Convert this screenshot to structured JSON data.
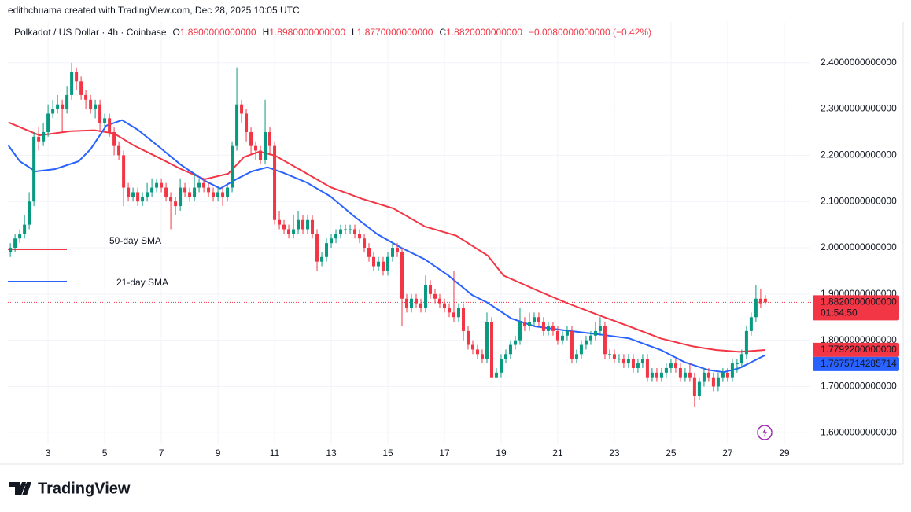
{
  "header": {
    "attribution": "edithchuama created with TradingView.com, Dec 28, 2025 10:05 UTC",
    "symbol": "Polkadot / US Dollar · 4h · Coinbase",
    "ohlc": [
      {
        "key": "O",
        "value": "1.8900000000000"
      },
      {
        "key": "H",
        "value": "1.8980000000000"
      },
      {
        "key": "L",
        "value": "1.8770000000000"
      },
      {
        "key": "C",
        "value": "1.8820000000000"
      }
    ],
    "change": "−0.0080000000000 (−0.42%)"
  },
  "footer": {
    "brand": "TradingView"
  },
  "chart_data": {
    "type": "candlestick",
    "up_color": "#089981",
    "down_color": "#f23645",
    "grid": true,
    "xlim": [
      1.58,
      29.92
    ],
    "xticks": [
      3,
      5,
      7,
      9,
      11,
      13,
      15,
      17,
      19,
      21,
      23,
      25,
      27,
      29
    ],
    "ylim": [
      1.575,
      2.488
    ],
    "yticks": [
      {
        "value": 1.6,
        "label": "1.6000000000000"
      },
      {
        "value": 1.7,
        "label": "1.7000000000000"
      },
      {
        "value": 1.8,
        "label": "1.8000000000000"
      },
      {
        "value": 1.9,
        "label": "1.9000000000000"
      },
      {
        "value": 2.0,
        "label": "2.0000000000000"
      },
      {
        "value": 2.1,
        "label": "2.1000000000000"
      },
      {
        "value": 2.2,
        "label": "2.2000000000000"
      },
      {
        "value": 2.3,
        "label": "2.3000000000000"
      },
      {
        "value": 2.4,
        "label": "2.4000000000000"
      }
    ],
    "x": [
      1.667,
      1.833,
      2,
      2.167,
      2.333,
      2.5,
      2.667,
      2.833,
      3,
      3.167,
      3.333,
      3.5,
      3.667,
      3.833,
      4,
      4.167,
      4.333,
      4.5,
      4.667,
      4.833,
      5,
      5.167,
      5.333,
      5.5,
      5.667,
      5.833,
      6,
      6.167,
      6.333,
      6.5,
      6.667,
      6.833,
      7,
      7.167,
      7.333,
      7.5,
      7.667,
      7.833,
      8,
      8.167,
      8.333,
      8.5,
      8.667,
      8.833,
      9,
      9.167,
      9.333,
      9.5,
      9.667,
      9.833,
      10,
      10.167,
      10.333,
      10.5,
      10.667,
      10.833,
      11,
      11.167,
      11.333,
      11.5,
      11.667,
      11.833,
      12,
      12.167,
      12.333,
      12.5,
      12.667,
      12.833,
      13,
      13.167,
      13.333,
      13.5,
      13.667,
      13.833,
      14,
      14.167,
      14.333,
      14.5,
      14.667,
      14.833,
      15,
      15.167,
      15.333,
      15.5,
      15.667,
      15.833,
      16,
      16.167,
      16.333,
      16.5,
      16.667,
      16.833,
      17,
      17.167,
      17.333,
      17.5,
      17.667,
      17.833,
      18,
      18.167,
      18.333,
      18.5,
      18.667,
      18.833,
      19,
      19.167,
      19.333,
      19.5,
      19.667,
      19.833,
      20,
      20.167,
      20.333,
      20.5,
      20.667,
      20.833,
      21,
      21.167,
      21.333,
      21.5,
      21.667,
      21.833,
      22,
      22.167,
      22.333,
      22.5,
      22.667,
      22.833,
      23,
      23.167,
      23.333,
      23.5,
      23.667,
      23.833,
      24,
      24.167,
      24.333,
      24.5,
      24.667,
      24.833,
      25,
      25.167,
      25.333,
      25.5,
      25.667,
      25.833,
      26,
      26.167,
      26.333,
      26.5,
      26.667,
      26.833,
      27,
      27.167,
      27.333,
      27.5,
      27.667,
      27.833,
      28,
      28.167,
      28.333
    ],
    "open": [
      1.99,
      2.0,
      2.02,
      2.03,
      2.05,
      2.1,
      2.24,
      2.23,
      2.25,
      2.29,
      2.3,
      2.31,
      2.3,
      2.33,
      2.38,
      2.36,
      2.33,
      2.32,
      2.3,
      2.31,
      2.27,
      2.28,
      2.25,
      2.22,
      2.2,
      2.13,
      2.11,
      2.12,
      2.1,
      2.11,
      2.12,
      2.13,
      2.14,
      2.13,
      2.11,
      2.1,
      2.09,
      2.13,
      2.12,
      2.11,
      2.13,
      2.14,
      2.13,
      2.12,
      2.11,
      2.12,
      2.11,
      2.13,
      2.22,
      2.31,
      2.29,
      2.25,
      2.22,
      2.21,
      2.19,
      2.25,
      2.22,
      2.06,
      2.05,
      2.04,
      2.03,
      2.04,
      2.06,
      2.04,
      2.06,
      2.03,
      1.97,
      1.98,
      2.01,
      2.02,
      2.03,
      2.04,
      2.04,
      2.04,
      2.03,
      2.02,
      2.0,
      1.98,
      1.96,
      1.97,
      1.95,
      1.98,
      2.0,
      1.99,
      1.89,
      1.87,
      1.89,
      1.88,
      1.87,
      1.92,
      1.9,
      1.89,
      1.88,
      1.87,
      1.86,
      1.85,
      1.87,
      1.82,
      1.79,
      1.78,
      1.77,
      1.76,
      1.84,
      1.72,
      1.73,
      1.76,
      1.77,
      1.79,
      1.8,
      1.84,
      1.83,
      1.84,
      1.85,
      1.84,
      1.82,
      1.83,
      1.82,
      1.8,
      1.81,
      1.82,
      1.76,
      1.77,
      1.79,
      1.8,
      1.81,
      1.82,
      1.83,
      1.77,
      1.77,
      1.76,
      1.76,
      1.75,
      1.76,
      1.74,
      1.75,
      1.76,
      1.72,
      1.73,
      1.72,
      1.73,
      1.74,
      1.75,
      1.74,
      1.72,
      1.73,
      1.72,
      1.68,
      1.71,
      1.73,
      1.72,
      1.7,
      1.72,
      1.73,
      1.72,
      1.75,
      1.75,
      1.77,
      1.82,
      1.85,
      1.89,
      1.89
    ],
    "high": [
      2.01,
      2.03,
      2.04,
      2.07,
      2.12,
      2.25,
      2.26,
      2.27,
      2.31,
      2.32,
      2.33,
      2.32,
      2.35,
      2.4,
      2.39,
      2.37,
      2.34,
      2.33,
      2.32,
      2.32,
      2.29,
      2.29,
      2.26,
      2.23,
      2.21,
      2.14,
      2.13,
      2.13,
      2.12,
      2.14,
      2.15,
      2.15,
      2.15,
      2.14,
      2.12,
      2.11,
      2.15,
      2.14,
      2.13,
      2.16,
      2.15,
      2.15,
      2.14,
      2.13,
      2.13,
      2.13,
      2.14,
      2.23,
      2.39,
      2.32,
      2.3,
      2.26,
      2.23,
      2.22,
      2.32,
      2.26,
      2.23,
      2.08,
      2.06,
      2.05,
      2.07,
      2.08,
      2.07,
      2.07,
      2.07,
      2.04,
      1.99,
      2.02,
      2.03,
      2.04,
      2.05,
      2.05,
      2.05,
      2.05,
      2.04,
      2.03,
      2.01,
      1.99,
      1.98,
      1.98,
      1.99,
      2.01,
      2.01,
      2.0,
      1.9,
      1.9,
      1.9,
      1.89,
      1.94,
      1.93,
      1.91,
      1.9,
      1.89,
      1.88,
      1.95,
      1.88,
      1.88,
      1.83,
      1.8,
      1.79,
      1.78,
      1.86,
      1.85,
      1.74,
      1.77,
      1.78,
      1.8,
      1.81,
      1.87,
      1.85,
      1.86,
      1.86,
      1.86,
      1.85,
      1.84,
      1.84,
      1.83,
      1.82,
      1.83,
      1.83,
      1.78,
      1.8,
      1.81,
      1.82,
      1.84,
      1.85,
      1.84,
      1.78,
      1.78,
      1.77,
      1.77,
      1.77,
      1.77,
      1.76,
      1.77,
      1.77,
      1.74,
      1.74,
      1.74,
      1.75,
      1.76,
      1.76,
      1.75,
      1.74,
      1.75,
      1.73,
      1.72,
      1.74,
      1.74,
      1.73,
      1.73,
      1.74,
      1.74,
      1.76,
      1.76,
      1.78,
      1.83,
      1.86,
      1.92,
      1.91,
      1.898
    ],
    "low": [
      1.98,
      1.99,
      2.01,
      2.02,
      2.04,
      2.09,
      2.21,
      2.22,
      2.24,
      2.28,
      2.29,
      2.25,
      2.29,
      2.32,
      2.34,
      2.32,
      2.3,
      2.29,
      2.28,
      2.25,
      2.26,
      2.24,
      2.2,
      2.19,
      2.09,
      2.1,
      2.1,
      2.09,
      2.09,
      2.1,
      2.11,
      2.12,
      2.12,
      2.1,
      2.04,
      2.07,
      2.08,
      2.11,
      2.1,
      2.1,
      2.12,
      2.12,
      2.11,
      2.1,
      2.1,
      2.09,
      2.1,
      2.12,
      2.21,
      2.27,
      2.23,
      2.2,
      2.19,
      2.18,
      2.18,
      2.2,
      2.05,
      2.04,
      2.03,
      2.02,
      2.02,
      2.03,
      2.03,
      2.03,
      2.02,
      1.95,
      1.96,
      1.97,
      2.0,
      2.01,
      2.02,
      2.03,
      2.03,
      2.02,
      2.01,
      1.99,
      1.97,
      1.95,
      1.95,
      1.94,
      1.94,
      1.97,
      1.98,
      1.83,
      1.86,
      1.86,
      1.87,
      1.86,
      1.86,
      1.89,
      1.88,
      1.87,
      1.86,
      1.85,
      1.84,
      1.84,
      1.8,
      1.78,
      1.77,
      1.76,
      1.75,
      1.75,
      1.72,
      1.72,
      1.72,
      1.75,
      1.76,
      1.78,
      1.79,
      1.82,
      1.82,
      1.83,
      1.83,
      1.81,
      1.81,
      1.81,
      1.79,
      1.79,
      1.8,
      1.75,
      1.75,
      1.76,
      1.78,
      1.79,
      1.8,
      1.81,
      1.76,
      1.76,
      1.75,
      1.75,
      1.74,
      1.74,
      1.73,
      1.73,
      1.74,
      1.71,
      1.71,
      1.71,
      1.71,
      1.72,
      1.73,
      1.73,
      1.71,
      1.71,
      1.71,
      1.655,
      1.67,
      1.7,
      1.71,
      1.69,
      1.69,
      1.71,
      1.71,
      1.71,
      1.73,
      1.74,
      1.76,
      1.81,
      1.84,
      1.87,
      1.877
    ],
    "close": [
      2.0,
      2.02,
      2.03,
      2.05,
      2.1,
      2.24,
      2.23,
      2.25,
      2.29,
      2.3,
      2.31,
      2.3,
      2.33,
      2.38,
      2.36,
      2.33,
      2.32,
      2.3,
      2.31,
      2.27,
      2.28,
      2.25,
      2.22,
      2.2,
      2.13,
      2.11,
      2.12,
      2.1,
      2.11,
      2.12,
      2.13,
      2.14,
      2.13,
      2.11,
      2.1,
      2.09,
      2.13,
      2.12,
      2.11,
      2.13,
      2.14,
      2.13,
      2.12,
      2.11,
      2.12,
      2.11,
      2.13,
      2.22,
      2.31,
      2.29,
      2.25,
      2.22,
      2.21,
      2.19,
      2.25,
      2.22,
      2.06,
      2.05,
      2.04,
      2.03,
      2.04,
      2.06,
      2.04,
      2.06,
      2.03,
      1.97,
      1.98,
      2.01,
      2.02,
      2.03,
      2.04,
      2.04,
      2.04,
      2.03,
      2.02,
      2.0,
      1.98,
      1.96,
      1.97,
      1.95,
      1.98,
      2.0,
      1.99,
      1.89,
      1.87,
      1.89,
      1.88,
      1.87,
      1.92,
      1.9,
      1.89,
      1.88,
      1.87,
      1.86,
      1.85,
      1.87,
      1.82,
      1.79,
      1.78,
      1.77,
      1.76,
      1.84,
      1.72,
      1.73,
      1.76,
      1.77,
      1.79,
      1.8,
      1.84,
      1.83,
      1.84,
      1.85,
      1.84,
      1.82,
      1.83,
      1.82,
      1.8,
      1.81,
      1.82,
      1.76,
      1.77,
      1.79,
      1.8,
      1.81,
      1.82,
      1.83,
      1.77,
      1.77,
      1.76,
      1.76,
      1.75,
      1.76,
      1.74,
      1.75,
      1.76,
      1.72,
      1.73,
      1.72,
      1.73,
      1.74,
      1.75,
      1.74,
      1.72,
      1.73,
      1.72,
      1.68,
      1.71,
      1.73,
      1.72,
      1.7,
      1.72,
      1.73,
      1.72,
      1.75,
      1.75,
      1.77,
      1.82,
      1.85,
      1.89,
      1.88,
      1.882
    ],
    "series": [
      {
        "name": "50-day SMA",
        "color": "#f23645",
        "x": [
          1.6,
          2.694,
          3.806,
          4.639,
          5.333,
          6.028,
          6.861,
          7.694,
          8.528,
          9.361,
          9.917,
          10.472,
          11.028,
          11.861,
          12.972,
          14.083,
          15.194,
          16.306,
          17.417,
          18.528,
          19.083,
          20.194,
          21.306,
          22.417,
          23.528,
          24.639,
          25.75,
          26.583,
          27.417,
          28.333
        ],
        "values": [
          2.271,
          2.243,
          2.252,
          2.254,
          2.247,
          2.221,
          2.196,
          2.17,
          2.148,
          2.16,
          2.196,
          2.208,
          2.199,
          2.17,
          2.131,
          2.106,
          2.085,
          2.046,
          2.026,
          1.983,
          1.94,
          1.91,
          1.881,
          1.855,
          1.83,
          1.804,
          1.787,
          1.779,
          1.775,
          1.779
        ]
      },
      {
        "name": "21-day SMA",
        "color": "#2962ff",
        "x": [
          1.6,
          2.0,
          2.556,
          3.25,
          4.083,
          4.5,
          5.056,
          5.611,
          6.167,
          6.861,
          7.694,
          8.528,
          9.083,
          9.639,
          10.194,
          10.75,
          11.306,
          12.139,
          12.972,
          13.806,
          14.639,
          15.472,
          16.306,
          17.139,
          17.972,
          18.528,
          19.361,
          20.194,
          21.306,
          22.417,
          23.528,
          24.639,
          25.472,
          26.306,
          26.861,
          27.417,
          27.972,
          28.333
        ],
        "values": [
          2.221,
          2.187,
          2.165,
          2.17,
          2.187,
          2.213,
          2.264,
          2.276,
          2.255,
          2.221,
          2.179,
          2.145,
          2.128,
          2.148,
          2.165,
          2.174,
          2.162,
          2.141,
          2.111,
          2.068,
          2.029,
          2.0,
          1.975,
          1.94,
          1.898,
          1.881,
          1.847,
          1.83,
          1.821,
          1.813,
          1.804,
          1.779,
          1.753,
          1.736,
          1.731,
          1.74,
          1.757,
          1.768
        ]
      }
    ],
    "price_tags": [
      {
        "value": 1.882,
        "label": "1.8820000000000",
        "countdown": "01:54:50",
        "color": "#f23645"
      },
      {
        "value": 1.77922,
        "label": "1.7792200000000",
        "color": "#f23645"
      },
      {
        "value": 1.7675714285714,
        "label": "1.7675714285714",
        "color": "#2962ff"
      }
    ]
  }
}
